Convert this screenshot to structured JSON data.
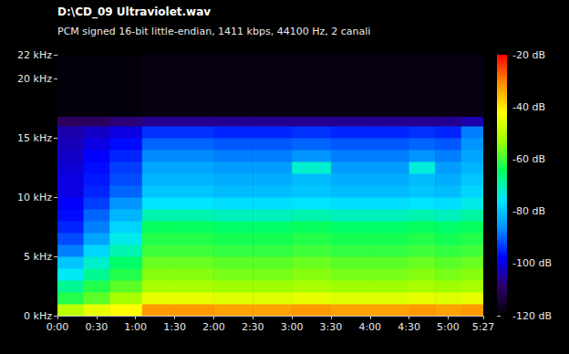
{
  "chart_data": {
    "type": "heatmap",
    "title": "D:\\CD_09 Ultraviolet.wav",
    "subtitle": "PCM signed 16-bit little-endian, 1411 kbps, 44100 Hz, 2 canali",
    "x_bins": [
      0,
      20,
      40,
      65,
      90,
      120,
      150,
      180,
      210,
      240,
      270,
      290,
      310,
      327
    ],
    "y_bins": [
      0,
      1,
      2,
      3,
      4,
      5,
      6,
      7,
      8,
      9,
      10,
      11,
      12,
      13,
      14,
      15,
      16,
      16.8,
      22
    ],
    "cells": [
      [
        -50,
        -45,
        -42,
        -32,
        -32,
        -33,
        -33,
        -32,
        -33,
        -33,
        -32,
        -33,
        -32
      ],
      [
        -62,
        -58,
        -52,
        -45,
        -45,
        -46,
        -46,
        -45,
        -46,
        -46,
        -45,
        -46,
        -45
      ],
      [
        -68,
        -62,
        -58,
        -52,
        -52,
        -53,
        -53,
        -52,
        -53,
        -53,
        -52,
        -53,
        -52
      ],
      [
        -75,
        -68,
        -62,
        -55,
        -55,
        -56,
        -56,
        -55,
        -56,
        -56,
        -55,
        -56,
        -55
      ],
      [
        -80,
        -72,
        -65,
        -57,
        -57,
        -58,
        -58,
        -57,
        -58,
        -58,
        -57,
        -58,
        -57
      ],
      [
        -88,
        -78,
        -70,
        -60,
        -60,
        -61,
        -61,
        -60,
        -61,
        -61,
        -60,
        -61,
        -60
      ],
      [
        -92,
        -84,
        -74,
        -62,
        -62,
        -63,
        -63,
        -62,
        -63,
        -63,
        -62,
        -63,
        -62
      ],
      [
        -95,
        -88,
        -78,
        -64,
        -64,
        -65,
        -65,
        -64,
        -65,
        -65,
        -64,
        -65,
        -64
      ],
      [
        -97,
        -90,
        -82,
        -70,
        -70,
        -71,
        -71,
        -70,
        -71,
        -71,
        -70,
        -71,
        -69
      ],
      [
        -98,
        -93,
        -86,
        -76,
        -76,
        -77,
        -77,
        -76,
        -77,
        -77,
        -76,
        -77,
        -74
      ],
      [
        -100,
        -95,
        -90,
        -80,
        -80,
        -81,
        -81,
        -80,
        -81,
        -81,
        -80,
        -81,
        -78
      ],
      [
        -100,
        -96,
        -92,
        -82,
        -82,
        -83,
        -83,
        -81,
        -83,
        -83,
        -81,
        -83,
        -80
      ],
      [
        -101,
        -97,
        -93,
        -84,
        -84,
        -85,
        -85,
        -72,
        -85,
        -85,
        -73,
        -85,
        -82
      ],
      [
        -102,
        -98,
        -95,
        -87,
        -87,
        -88,
        -88,
        -86,
        -88,
        -88,
        -86,
        -88,
        -84
      ],
      [
        -103,
        -100,
        -97,
        -90,
        -90,
        -91,
        -91,
        -90,
        -91,
        -91,
        -90,
        -91,
        -86
      ],
      [
        -104,
        -102,
        -100,
        -94,
        -94,
        -95,
        -95,
        -94,
        -95,
        -95,
        -94,
        -95,
        -88
      ],
      [
        -110,
        -110,
        -108,
        -106,
        -106,
        -106,
        -106,
        -106,
        -106,
        -106,
        -106,
        -106,
        -104
      ],
      [
        -119,
        -119,
        -119,
        -118,
        -118,
        -118,
        -118,
        -118,
        -118,
        -118,
        -118,
        -118,
        -118
      ]
    ],
    "xlim": [
      0,
      327
    ],
    "xticks": [
      {
        "value": 0,
        "label": "0:00"
      },
      {
        "value": 30,
        "label": "0:30"
      },
      {
        "value": 60,
        "label": "1:00"
      },
      {
        "value": 90,
        "label": "1:30"
      },
      {
        "value": 120,
        "label": "2:00"
      },
      {
        "value": 150,
        "label": "2:30"
      },
      {
        "value": 180,
        "label": "3:00"
      },
      {
        "value": 210,
        "label": "3:30"
      },
      {
        "value": 240,
        "label": "4:00"
      },
      {
        "value": 270,
        "label": "4:30"
      },
      {
        "value": 300,
        "label": "5:00"
      },
      {
        "value": 327,
        "label": "5:27"
      }
    ],
    "ylim": [
      0,
      22
    ],
    "yticks": [
      {
        "value": 0,
        "label": "0 kHz"
      },
      {
        "value": 5,
        "label": "5 kHz"
      },
      {
        "value": 10,
        "label": "10 kHz"
      },
      {
        "value": 15,
        "label": "15 kHz"
      },
      {
        "value": 20,
        "label": "20 kHz"
      },
      {
        "value": 22,
        "label": "22 kHz"
      }
    ],
    "colorbar": {
      "range": [
        -120,
        -20
      ],
      "ticks": [
        {
          "value": -120,
          "label": "-120 dB"
        },
        {
          "value": -100,
          "label": "-100 dB"
        },
        {
          "value": -80,
          "label": "-80 dB"
        },
        {
          "value": -60,
          "label": "-60 dB"
        },
        {
          "value": -40,
          "label": "-40 dB"
        },
        {
          "value": -20,
          "label": "-20 dB"
        }
      ]
    },
    "grid": false
  }
}
